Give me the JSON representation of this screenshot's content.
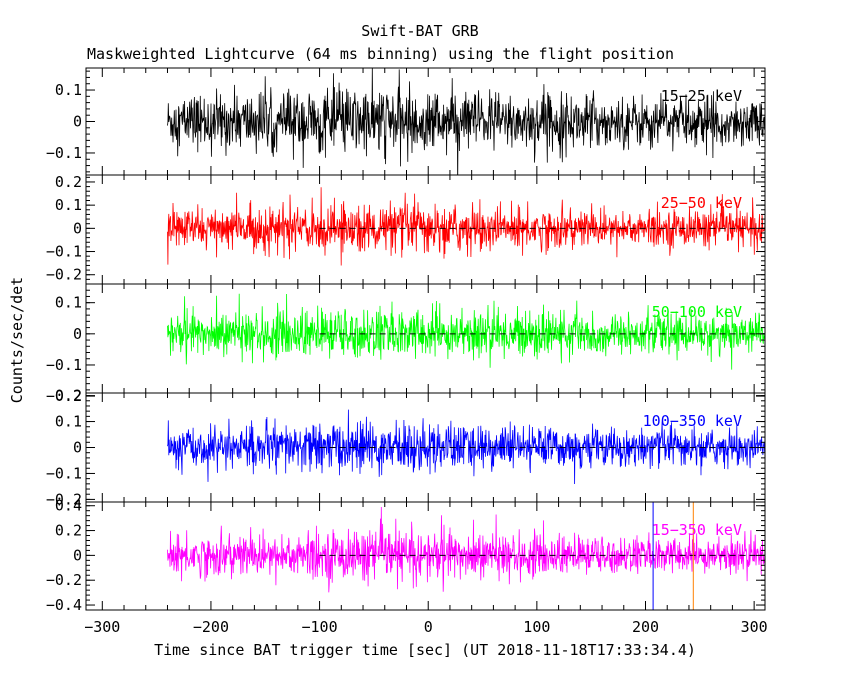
{
  "chart_data": {
    "type": "line",
    "title": "Swift-BAT GRB",
    "subtitle": "Maskweighted Lightcurve (64 ms binning) using the flight position",
    "xlabel": "Time since BAT trigger time [sec] (UT 2018-11-18T17:33:34.4)",
    "ylabel": "Counts/sec/det",
    "xlim": [
      -315,
      310
    ],
    "x_ticks": [
      "-300",
      "-200",
      "-100",
      "0",
      "100",
      "200",
      "300"
    ],
    "data_start": -240,
    "data_end": 310,
    "reference_line_start": -100,
    "markers": [
      {
        "x": 207,
        "color": "#0000ff"
      },
      {
        "x": 244,
        "color": "#ff8000"
      }
    ],
    "panels": [
      {
        "name": "15-25 keV",
        "label": "15−25 keV",
        "color": "#000000",
        "ylim": [
          -0.17,
          0.17
        ],
        "ticks": [
          "0.1",
          "0",
          "−0.1"
        ],
        "tick_values": [
          0.1,
          0,
          -0.1
        ],
        "noise_sigma": 0.045,
        "spike_amp": 0.06
      },
      {
        "name": "25-50 keV",
        "label": "25−50 keV",
        "color": "#ff0000",
        "ylim": [
          -0.24,
          0.23
        ],
        "ticks": [
          "0.2",
          "0.1",
          "0",
          "−0.1",
          "−0.2"
        ],
        "tick_values": [
          0.2,
          0.1,
          0,
          -0.1,
          -0.2
        ],
        "noise_sigma": 0.045,
        "spike_amp": 0.07
      },
      {
        "name": "50-100 keV",
        "label": "50−100 keV",
        "color": "#00ff00",
        "ylim": [
          -0.19,
          0.16
        ],
        "ticks": [
          "0.1",
          "0",
          "−0.1",
          "−0.2"
        ],
        "tick_values": [
          0.1,
          0,
          -0.1,
          -0.2
        ],
        "noise_sigma": 0.035,
        "spike_amp": 0.06
      },
      {
        "name": "100-350 keV",
        "label": "100−350 keV",
        "color": "#0000ff",
        "ylim": [
          -0.21,
          0.21
        ],
        "ticks": [
          "0.2",
          "0.1",
          "0",
          "−0.1",
          "−0.2"
        ],
        "tick_values": [
          0.2,
          0.1,
          0,
          -0.1,
          -0.2
        ],
        "noise_sigma": 0.04,
        "spike_amp": 0.07
      },
      {
        "name": "15-350 keV",
        "label": "15−350 keV",
        "color": "#ff00ff",
        "ylim": [
          -0.44,
          0.43
        ],
        "ticks": [
          "0.4",
          "0.2",
          "0",
          "−0.2",
          "−0.4"
        ],
        "tick_values": [
          0.4,
          0.2,
          0,
          -0.2,
          -0.4
        ],
        "noise_sigma": 0.085,
        "spike_amp": 0.13
      }
    ]
  }
}
